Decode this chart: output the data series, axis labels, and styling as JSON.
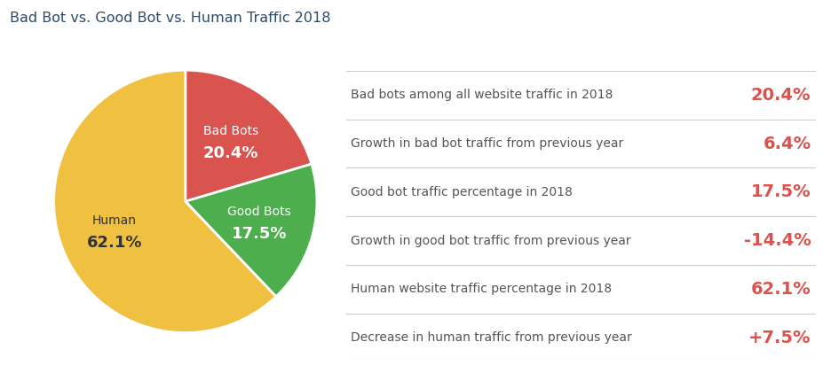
{
  "title": "Bad Bot vs. Good Bot vs. Human Traffic 2018",
  "title_color": "#2d4a6b",
  "title_fontsize": 11.5,
  "pie_slices": [
    20.4,
    17.5,
    62.1
  ],
  "pie_label_names": [
    "Bad Bots",
    "Good Bots",
    "Human"
  ],
  "pie_label_pcts": [
    "20.4%",
    "17.5%",
    "62.1%"
  ],
  "pie_colors": [
    "#d9534f",
    "#4cae4c",
    "#f0c040"
  ],
  "pie_label_colors": [
    "white",
    "white",
    "#333333"
  ],
  "pie_startangle": 90,
  "background_color": "#ffffff",
  "stats": [
    {
      "label": "Bad bots among all website traffic in 2018",
      "value": "20.4%"
    },
    {
      "label": "Growth in bad bot traffic from previous year",
      "value": "6.4%"
    },
    {
      "label": "Good bot traffic percentage in 2018",
      "value": "17.5%"
    },
    {
      "label": "Growth in good bot traffic from previous year",
      "value": "-14.4%"
    },
    {
      "label": "Human website traffic percentage in 2018",
      "value": "62.1%"
    },
    {
      "label": "Decrease in human traffic from previous year",
      "value": "+7.5%"
    }
  ],
  "stat_label_color": "#555555",
  "stat_value_color": "#d9534f",
  "stat_label_fontsize": 10,
  "stat_value_fontsize": 14,
  "divider_color": "#cccccc",
  "pie_name_fontsize": 10,
  "pie_pct_fontsize": 13
}
